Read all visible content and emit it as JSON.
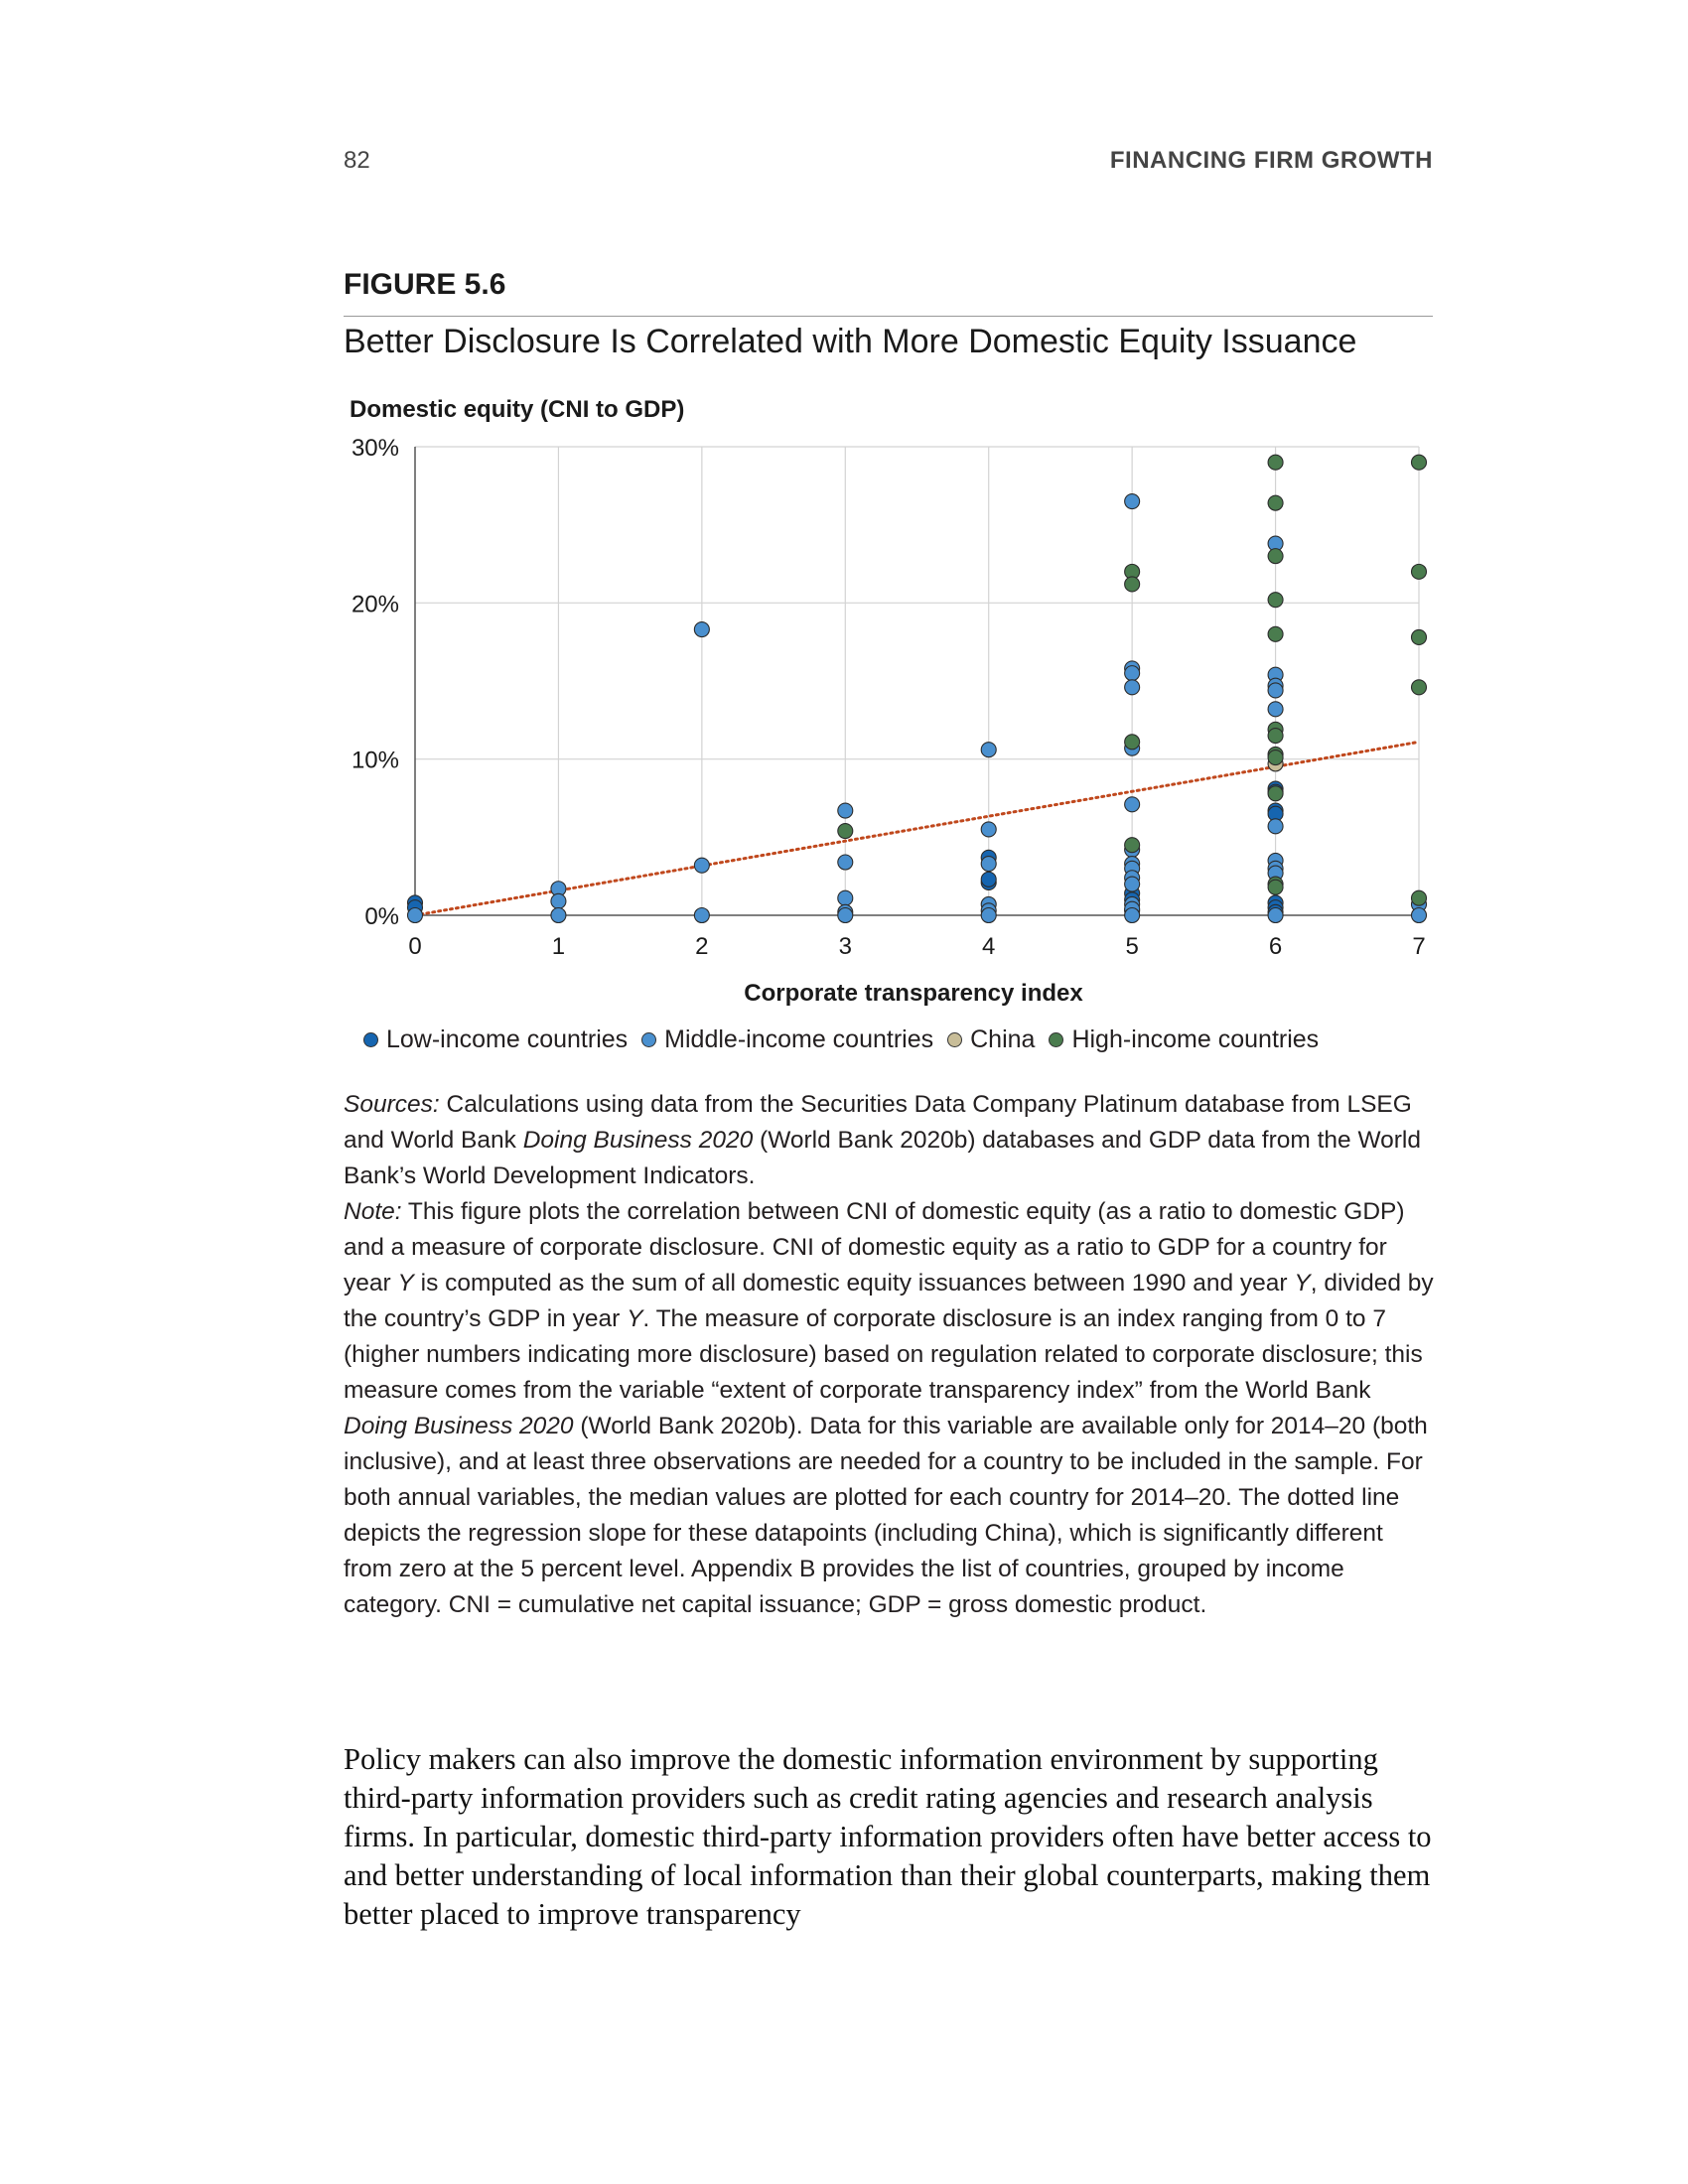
{
  "header": {
    "page_number": "82",
    "running_head": "FINANCING FIRM GROWTH"
  },
  "figure": {
    "label": "FIGURE 5.6",
    "title": "Better Disclosure Is Correlated with More Domestic Equity Issuance"
  },
  "colors": {
    "low": "#1665b0",
    "middle": "#4a90cf",
    "china": "#c8bd98",
    "high": "#4a7c4e",
    "trend": "#c0481d",
    "grid": "#d3d3d3",
    "axis": "#555555"
  },
  "chart_data": {
    "type": "scatter",
    "ylabel": "Domestic equity (CNI to GDP)",
    "xlabel": "Corporate transparency index",
    "xlim": [
      0,
      7
    ],
    "ylim": [
      0,
      30
    ],
    "x_ticks": [
      "0",
      "1",
      "2",
      "3",
      "4",
      "5",
      "6",
      "7"
    ],
    "y_ticks": [
      "0%",
      "10%",
      "20%",
      "30%"
    ],
    "grid": true,
    "legend_position": "bottom",
    "trendline": {
      "style": "dotted",
      "from": [
        0,
        0
      ],
      "to": [
        7,
        11.1
      ]
    },
    "series": [
      {
        "name": "Low-income countries",
        "color_key": "low",
        "points": [
          [
            0,
            0.8
          ],
          [
            0,
            0.5
          ],
          [
            4,
            3.7
          ],
          [
            4,
            2.1
          ],
          [
            4,
            2.3
          ],
          [
            5,
            1.4
          ],
          [
            5,
            1.0
          ],
          [
            5,
            0.3
          ],
          [
            6,
            8.1
          ],
          [
            6,
            7.9
          ],
          [
            6,
            6.7
          ],
          [
            6,
            6.5
          ],
          [
            6,
            0.8
          ],
          [
            6,
            0.5
          ],
          [
            6,
            0.2
          ]
        ]
      },
      {
        "name": "Middle-income countries",
        "color_key": "middle",
        "points": [
          [
            0,
            0
          ],
          [
            1,
            1.7
          ],
          [
            1,
            0.9
          ],
          [
            1,
            0
          ],
          [
            2,
            18.3
          ],
          [
            2,
            3.2
          ],
          [
            2,
            0
          ],
          [
            3,
            6.7
          ],
          [
            3,
            3.4
          ],
          [
            3,
            1.1
          ],
          [
            3,
            0.2
          ],
          [
            3,
            0
          ],
          [
            4,
            10.6
          ],
          [
            4,
            5.5
          ],
          [
            4,
            3.3
          ],
          [
            4,
            0.7
          ],
          [
            4,
            0.3
          ],
          [
            4,
            0
          ],
          [
            5,
            26.5
          ],
          [
            5,
            15.8
          ],
          [
            5,
            15.5
          ],
          [
            5,
            14.6
          ],
          [
            5,
            10.7
          ],
          [
            5,
            7.1
          ],
          [
            5,
            4.2
          ],
          [
            5,
            3.3
          ],
          [
            5,
            3.0
          ],
          [
            5,
            2.4
          ],
          [
            5,
            2.0
          ],
          [
            5,
            0.7
          ],
          [
            5,
            0.4
          ],
          [
            5,
            0
          ],
          [
            6,
            23.8
          ],
          [
            6,
            15.4
          ],
          [
            6,
            14.7
          ],
          [
            6,
            14.4
          ],
          [
            6,
            13.2
          ],
          [
            6,
            5.7
          ],
          [
            6,
            3.5
          ],
          [
            6,
            3.0
          ],
          [
            6,
            2.7
          ],
          [
            6,
            0
          ],
          [
            7,
            0.7
          ],
          [
            7,
            0
          ]
        ]
      },
      {
        "name": "China",
        "color_key": "china",
        "points": [
          [
            6,
            9.7
          ]
        ]
      },
      {
        "name": "High-income countries",
        "color_key": "high",
        "points": [
          [
            3,
            5.4
          ],
          [
            5,
            22.0
          ],
          [
            5,
            21.2
          ],
          [
            5,
            11.1
          ],
          [
            5,
            4.5
          ],
          [
            6,
            29.0
          ],
          [
            6,
            26.4
          ],
          [
            6,
            23.0
          ],
          [
            6,
            20.2
          ],
          [
            6,
            18.0
          ],
          [
            6,
            11.9
          ],
          [
            6,
            11.5
          ],
          [
            6,
            10.3
          ],
          [
            6,
            10.1
          ],
          [
            6,
            7.8
          ],
          [
            6,
            2.0
          ],
          [
            6,
            1.8
          ],
          [
            7,
            29.0
          ],
          [
            7,
            22.0
          ],
          [
            7,
            17.8
          ],
          [
            7,
            14.6
          ],
          [
            7,
            1.1
          ]
        ]
      }
    ]
  },
  "notes": {
    "sources_label": "Sources:",
    "sources_text_1": " Calculations using data from the Securities Data Company Platinum database from LSEG and World Bank ",
    "sources_title_1": "Doing Business 2020",
    "sources_text_2": " (World Bank 2020b) databases and GDP data from the World Bank’s World Development Indicators.",
    "note_label": "Note:",
    "note_text_1": " This figure plots the correlation between CNI of domestic equity (as a ratio to domestic GDP) and a measure of corporate disclosure. CNI of domestic equity as a ratio to GDP for a country for year ",
    "note_var_y1": "Y",
    "note_text_2": " is computed as the sum of all domestic equity issuances between 1990 and year ",
    "note_var_y2": "Y",
    "note_text_3": ", divided by the country’s GDP in year ",
    "note_var_y3": "Y",
    "note_text_4": ". The measure of corporate disclosure is an index ranging from 0 to 7 (higher numbers indicating more disclosure) based on regulation related to corporate disclosure; this measure comes from the variable “extent of corporate transparency index” from the World Bank ",
    "note_title": "Doing Business 2020",
    "note_text_5": " (World Bank 2020b). Data for this variable are available only for 2014–20 (both inclusive), and at least three observations are needed for a country to be included in the sample. For both annual variables, the median values are plotted for each country for 2014–20. The dotted line depicts the regression slope for these datapoints (including China), which is significantly different from zero at the 5 percent level. Appendix B provides the list of countries, grouped by income category. CNI = cumulative net capital issuance; GDP = gross domestic product."
  },
  "body": {
    "paragraph": "Policy makers can also improve the domestic information environment by supporting third-party information providers such as credit rating agencies and research analysis firms. In particular, domestic third-party information providers often have better access to and better understanding of local information than their global counterparts, making them better placed to improve transparency"
  }
}
